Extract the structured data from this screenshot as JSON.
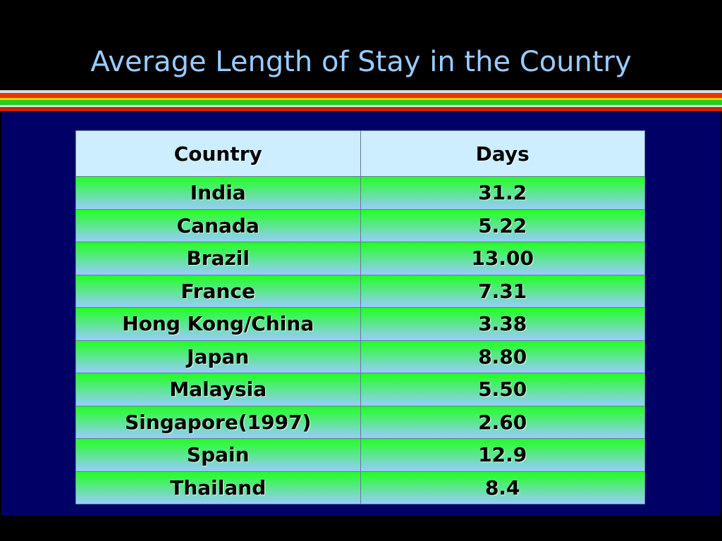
{
  "title": "Average Length of Stay in the Country",
  "table": {
    "header": [
      "Country",
      "Days"
    ],
    "rows": [
      [
        "India",
        "31.2"
      ],
      [
        "Canada",
        "5.22"
      ],
      [
        "Brazil",
        "13.00"
      ],
      [
        "France",
        "7.31"
      ],
      [
        "Hong Kong/China",
        "3.38"
      ],
      [
        "Japan",
        "8.80"
      ],
      [
        "Malaysia",
        "5.50"
      ],
      [
        "Singapore(1997)",
        "2.60"
      ],
      [
        "Spain",
        "12.9"
      ],
      [
        "Thailand",
        "8.4"
      ]
    ]
  }
}
